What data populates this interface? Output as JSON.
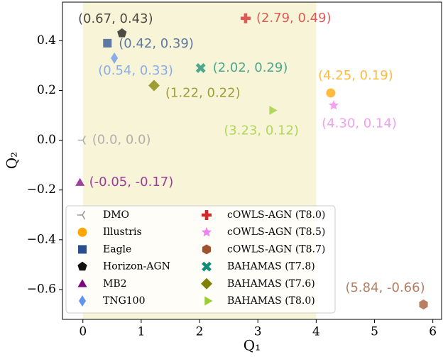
{
  "chart_data": {
    "type": "scatter",
    "xlabel": "Q₁",
    "ylabel": "Q₂",
    "xlim": [
      -0.35,
      6.15
    ],
    "ylim": [
      -0.72,
      0.555
    ],
    "xticks": [
      0,
      1,
      2,
      3,
      4,
      5,
      6
    ],
    "yticks": [
      {
        "value": -0.6,
        "label": "−0.6"
      },
      {
        "value": -0.4,
        "label": "−0.4"
      },
      {
        "value": -0.2,
        "label": "−0.2"
      },
      {
        "value": 0,
        "label": "0.0"
      },
      0.2,
      0.4
    ],
    "highlight_x": [
      0,
      4
    ],
    "highlight_color": "#f8f4d8",
    "legend": "lower left",
    "series": [
      {
        "name": "DMO",
        "color": "#9a9a9a",
        "marker": "tri_left",
        "x": [
          0.0
        ],
        "values": [
          0.0
        ],
        "value_labels": [
          "(0.0, 0.0)"
        ]
      },
      {
        "name": "Illustris",
        "color": "#ffa500",
        "marker": "circle",
        "x": [
          4.25
        ],
        "values": [
          0.19
        ],
        "value_labels": [
          "(4.25, 0.19)"
        ]
      },
      {
        "name": "Eagle",
        "color": "#2a4f8f",
        "marker": "square",
        "x": [
          0.42
        ],
        "values": [
          0.39
        ],
        "value_labels": [
          "(0.42, 0.39)"
        ]
      },
      {
        "name": "Horizon-AGN",
        "color": "#111111",
        "marker": "pentagon",
        "x": [
          0.67
        ],
        "values": [
          0.43
        ],
        "value_labels": [
          "(0.67, 0.43)"
        ]
      },
      {
        "name": "MB2",
        "color": "#800080",
        "marker": "triangle_up",
        "x": [
          -0.05
        ],
        "values": [
          -0.17
        ],
        "value_labels": [
          "(-0.05, -0.17)"
        ]
      },
      {
        "name": "TNG100",
        "color": "#6495ed",
        "marker": "thin_diamond",
        "x": [
          0.54
        ],
        "values": [
          0.33
        ],
        "value_labels": [
          "(0.54, 0.33)"
        ]
      },
      {
        "name": "cOWLS-AGN (T8.0)",
        "color": "#d62728",
        "marker": "plus",
        "x": [
          2.79
        ],
        "values": [
          0.49
        ],
        "value_labels": [
          "(2.79, 0.49)"
        ]
      },
      {
        "name": "cOWLS-AGN (T8.5)",
        "color": "#ee82ee",
        "marker": "star",
        "x": [
          4.3
        ],
        "values": [
          0.14
        ],
        "value_labels": [
          "(4.30, 0.14)"
        ]
      },
      {
        "name": "cOWLS-AGN (T8.7)",
        "color": "#a0522d",
        "marker": "hexagon",
        "x": [
          5.84
        ],
        "values": [
          -0.66
        ],
        "value_labels": [
          "(5.84, -0.66)"
        ]
      },
      {
        "name": "BAHAMAS (T7.8)",
        "color": "#138d75",
        "marker": "x",
        "x": [
          2.02
        ],
        "values": [
          0.29
        ],
        "value_labels": [
          "(2.02, 0.29)"
        ]
      },
      {
        "name": "BAHAMAS (T7.6)",
        "color": "#808000",
        "marker": "diamond",
        "x": [
          1.22
        ],
        "values": [
          0.22
        ],
        "value_labels": [
          "(1.22, 0.22)"
        ]
      },
      {
        "name": "BAHAMAS (T8.0)",
        "color": "#9acd32",
        "marker": "triangle_right",
        "x": [
          3.23
        ],
        "values": [
          0.12
        ],
        "value_labels": [
          "(3.23, 0.12)"
        ]
      }
    ]
  }
}
